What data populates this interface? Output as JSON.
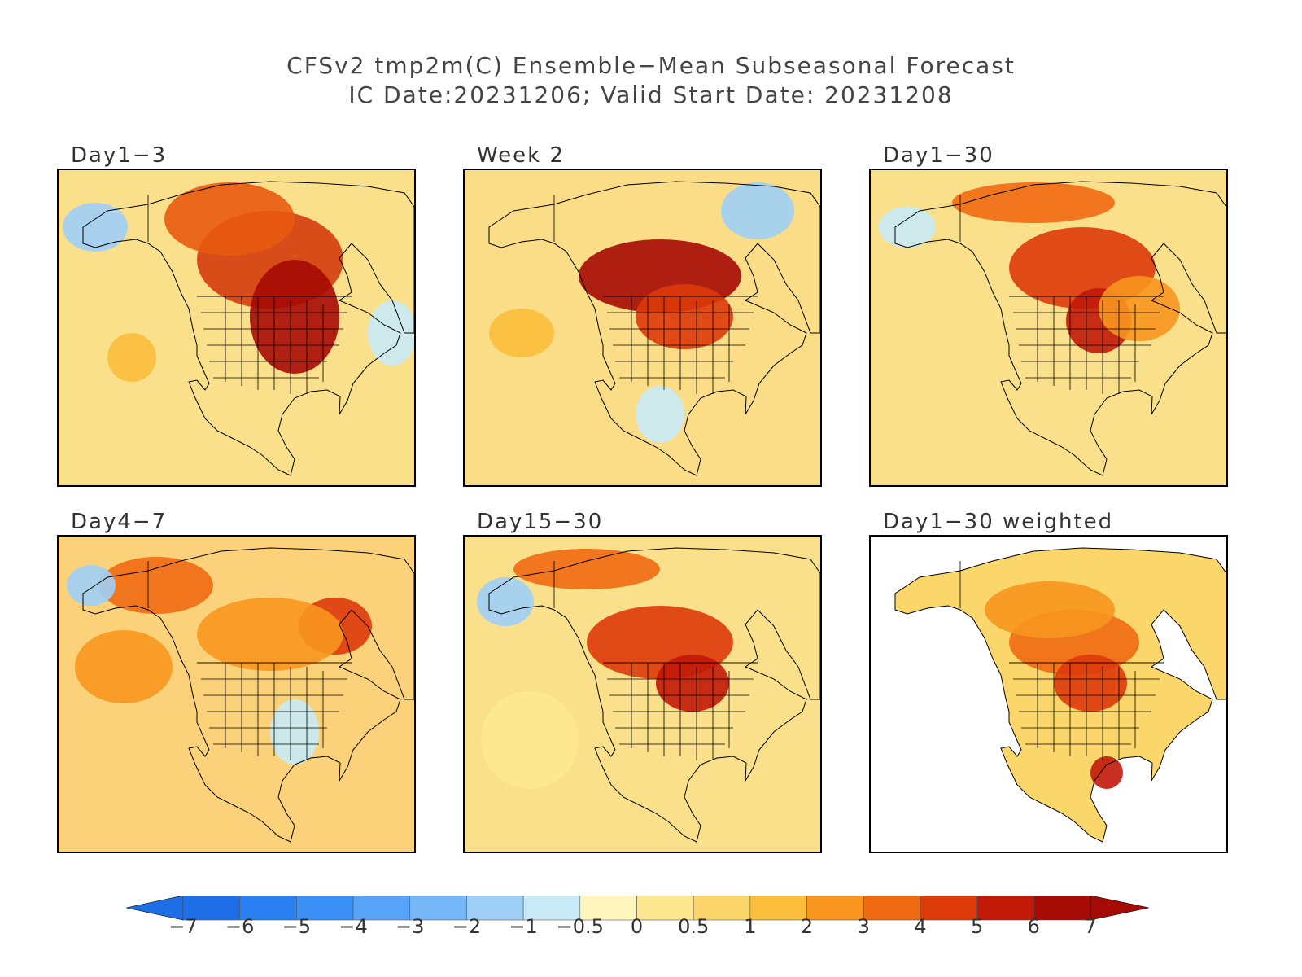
{
  "header": {
    "title_line1": "CFSv2 tmp2m(C) Ensemble−Mean Subseasonal Forecast",
    "title_line2": "IC Date:20231206; Valid Start Date: 20231208"
  },
  "panels": [
    {
      "id": "p1",
      "label": "Day1−3",
      "bg": "#fbe08c",
      "ocean_masked": false
    },
    {
      "id": "p2",
      "label": "Week 2",
      "bg": "#fbdc87",
      "ocean_masked": false
    },
    {
      "id": "p3",
      "label": "Day1−30",
      "bg": "#fbe08c",
      "ocean_masked": false
    },
    {
      "id": "p4",
      "label": "Day4−7",
      "bg": "#fbd27a",
      "ocean_masked": false
    },
    {
      "id": "p5",
      "label": "Day15−30",
      "bg": "#fbe08c",
      "ocean_masked": false
    },
    {
      "id": "p6",
      "label": "Day1−30 weighted",
      "bg": "#ffffff",
      "ocean_masked": true
    }
  ],
  "colorbar": {
    "labels": [
      "−7",
      "−6",
      "−5",
      "−4",
      "−3",
      "−2",
      "−1",
      "−0.5",
      "0",
      "0.5",
      "1",
      "2",
      "3",
      "4",
      "5",
      "6",
      "7"
    ],
    "colors": [
      "#1e6ee6",
      "#2a7ff0",
      "#3b90f5",
      "#57a3f7",
      "#76b7f8",
      "#9fcff7",
      "#c8eaf6",
      "#fff6bd",
      "#fde88f",
      "#fbd76b",
      "#fbbe3c",
      "#f8961f",
      "#f06a12",
      "#dd3a0a",
      "#c11808",
      "#a60a04"
    ],
    "low_arrow_color": "#1e6ee6",
    "high_arrow_color": "#a60a04"
  }
}
